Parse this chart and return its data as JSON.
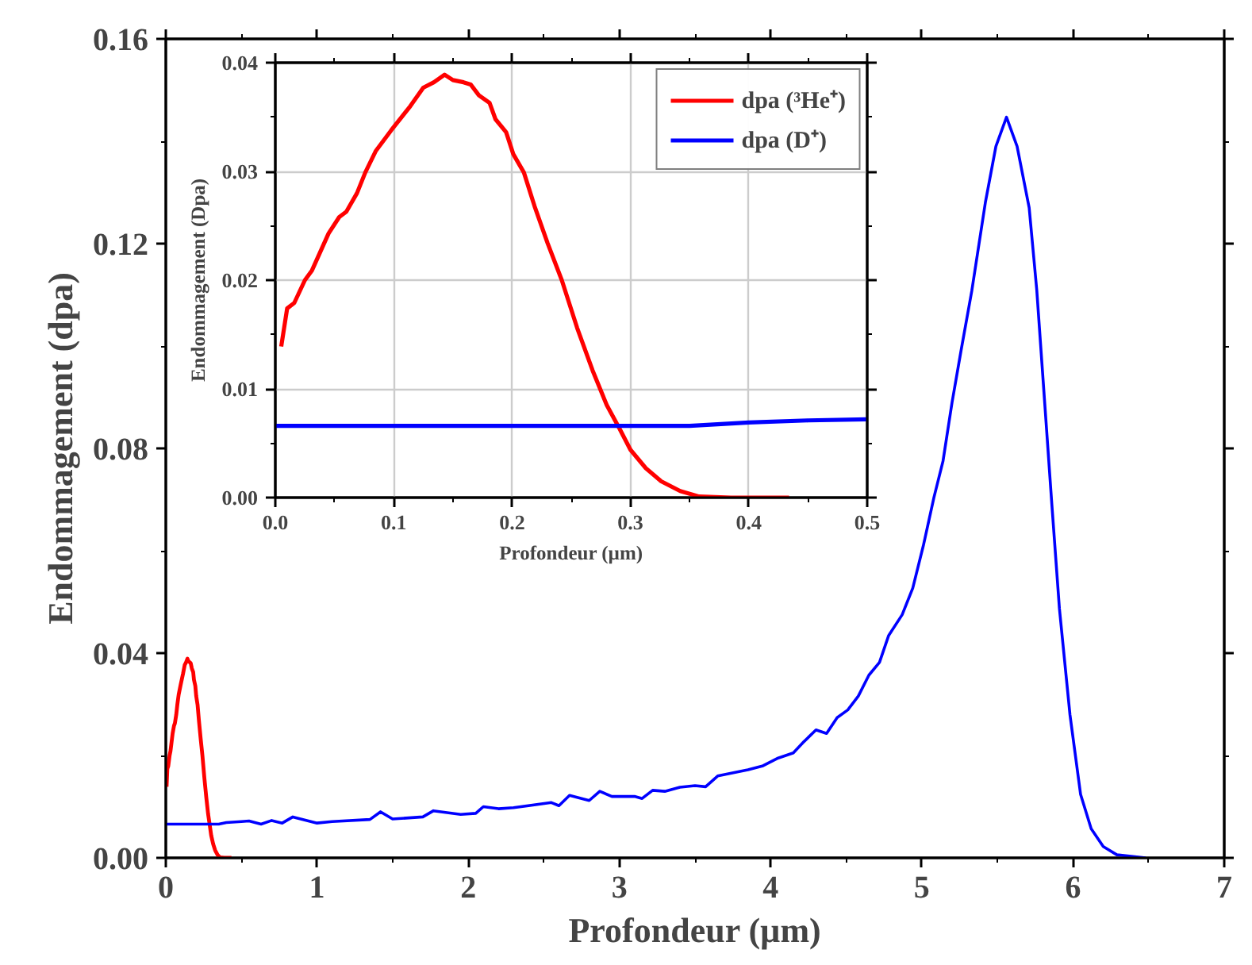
{
  "chart_data": [
    {
      "type": "line",
      "xlabel": "Profondeur (µm)",
      "ylabel": "Endommagement (dpa)",
      "xlim": [
        0,
        7
      ],
      "ylim": [
        0,
        0.16
      ],
      "xticks": [
        0,
        1,
        2,
        3,
        4,
        5,
        6,
        7
      ],
      "yticks": [
        {
          "value": 0,
          "label": "0.00"
        },
        {
          "value": 0.04,
          "label": "0.04"
        },
        {
          "value": 0.08,
          "label": "0.08"
        },
        {
          "value": 0.12,
          "label": "0.12"
        },
        {
          "value": 0.16,
          "label": "0.16"
        }
      ],
      "grid": false,
      "legend": false,
      "series": [
        {
          "color": "#ff0000",
          "x": [
            0.005,
            0.01,
            0.016,
            0.025,
            0.031,
            0.038,
            0.045,
            0.054,
            0.06,
            0.069,
            0.076,
            0.085,
            0.098,
            0.114,
            0.125,
            0.134,
            0.143,
            0.15,
            0.159,
            0.165,
            0.172,
            0.181,
            0.186,
            0.195,
            0.201,
            0.21,
            0.219,
            0.23,
            0.242,
            0.255,
            0.268,
            0.28,
            0.291,
            0.3,
            0.313,
            0.326,
            0.342,
            0.358,
            0.385,
            0.434
          ],
          "values": [
            0.0139,
            0.0174,
            0.0179,
            0.02,
            0.0209,
            0.0226,
            0.0243,
            0.0258,
            0.0263,
            0.028,
            0.0299,
            0.0319,
            0.0338,
            0.036,
            0.0377,
            0.0382,
            0.0389,
            0.0384,
            0.0382,
            0.038,
            0.037,
            0.0363,
            0.0348,
            0.0336,
            0.0316,
            0.0299,
            0.0268,
            0.0234,
            0.02,
            0.0156,
            0.0117,
            0.0085,
            0.0063,
            0.0044,
            0.0027,
            0.0015,
            0.0006,
            0.0001,
            0,
            0
          ]
        },
        {
          "color": "#0000ff",
          "x": [
            0,
            0.35,
            0.4,
            0.5,
            0.55,
            0.63,
            0.7,
            0.77,
            0.84,
            1.0,
            1.1,
            1.35,
            1.42,
            1.5,
            1.7,
            1.77,
            1.95,
            2.05,
            2.1,
            2.2,
            2.3,
            2.55,
            2.6,
            2.67,
            2.8,
            2.87,
            2.95,
            3.1,
            3.15,
            3.22,
            3.3,
            3.4,
            3.5,
            3.57,
            3.65,
            3.85,
            3.95,
            4.05,
            4.15,
            4.22,
            4.3,
            4.37,
            4.44,
            4.51,
            4.58,
            4.65,
            4.72,
            4.78,
            4.87,
            4.94,
            5.01,
            5.08,
            5.14,
            5.2,
            5.26,
            5.33,
            5.42,
            5.49,
            5.56,
            5.63,
            5.71,
            5.76,
            5.81,
            5.86,
            5.91,
            5.98,
            6.05,
            6.12,
            6.2,
            6.29,
            6.48
          ],
          "values": [
            0.0066,
            0.0066,
            0.0069,
            0.0071,
            0.0072,
            0.0066,
            0.0073,
            0.0068,
            0.008,
            0.0068,
            0.0071,
            0.0075,
            0.009,
            0.0076,
            0.008,
            0.0092,
            0.0085,
            0.0087,
            0.01,
            0.0096,
            0.0098,
            0.0108,
            0.0102,
            0.0122,
            0.0112,
            0.013,
            0.012,
            0.012,
            0.0116,
            0.0132,
            0.013,
            0.0138,
            0.0141,
            0.0139,
            0.016,
            0.0172,
            0.018,
            0.0195,
            0.0205,
            0.0227,
            0.025,
            0.0243,
            0.0274,
            0.0289,
            0.0316,
            0.0357,
            0.0382,
            0.0434,
            0.0475,
            0.0527,
            0.061,
            0.0704,
            0.0775,
            0.089,
            0.0992,
            0.1107,
            0.128,
            0.139,
            0.1447,
            0.139,
            0.127,
            0.111,
            0.09,
            0.069,
            0.0487,
            0.0279,
            0.0124,
            0.0057,
            0.0022,
            0.0006,
            0
          ]
        }
      ]
    },
    {
      "type": "line",
      "xlabel": "Profondeur (µm)",
      "ylabel": "Endommagement (Dpa)",
      "xlim": [
        0,
        0.5
      ],
      "ylim": [
        0,
        0.04
      ],
      "xticks": [
        {
          "value": 0,
          "label": "0.0"
        },
        0.1,
        0.2,
        0.3,
        0.4,
        0.5
      ],
      "yticks": [
        {
          "value": 0,
          "label": "0.00"
        },
        0.01,
        0.02,
        0.03,
        0.04
      ],
      "grid": true,
      "legend": "top right",
      "series": [
        {
          "name": "dpa (³He⁺)",
          "color": "#ff0000",
          "x": [
            0.005,
            0.01,
            0.016,
            0.025,
            0.031,
            0.038,
            0.045,
            0.054,
            0.06,
            0.069,
            0.076,
            0.085,
            0.098,
            0.114,
            0.125,
            0.134,
            0.143,
            0.15,
            0.159,
            0.165,
            0.172,
            0.181,
            0.186,
            0.195,
            0.201,
            0.21,
            0.219,
            0.23,
            0.242,
            0.255,
            0.268,
            0.28,
            0.291,
            0.3,
            0.313,
            0.326,
            0.342,
            0.358,
            0.385,
            0.434
          ],
          "values": [
            0.0139,
            0.0174,
            0.0179,
            0.02,
            0.0209,
            0.0226,
            0.0243,
            0.0258,
            0.0263,
            0.028,
            0.0299,
            0.0319,
            0.0338,
            0.036,
            0.0377,
            0.0382,
            0.0389,
            0.0384,
            0.0382,
            0.038,
            0.037,
            0.0363,
            0.0348,
            0.0336,
            0.0316,
            0.0299,
            0.0268,
            0.0234,
            0.02,
            0.0156,
            0.0117,
            0.0085,
            0.0063,
            0.0044,
            0.0027,
            0.0015,
            0.0006,
            0.0001,
            0,
            0
          ]
        },
        {
          "name": "dpa (D⁺)",
          "color": "#0000ff",
          "x": [
            0,
            0.35,
            0.4,
            0.45,
            0.5
          ],
          "values": [
            0.0066,
            0.0066,
            0.0069,
            0.0071,
            0.0072
          ]
        }
      ]
    }
  ]
}
